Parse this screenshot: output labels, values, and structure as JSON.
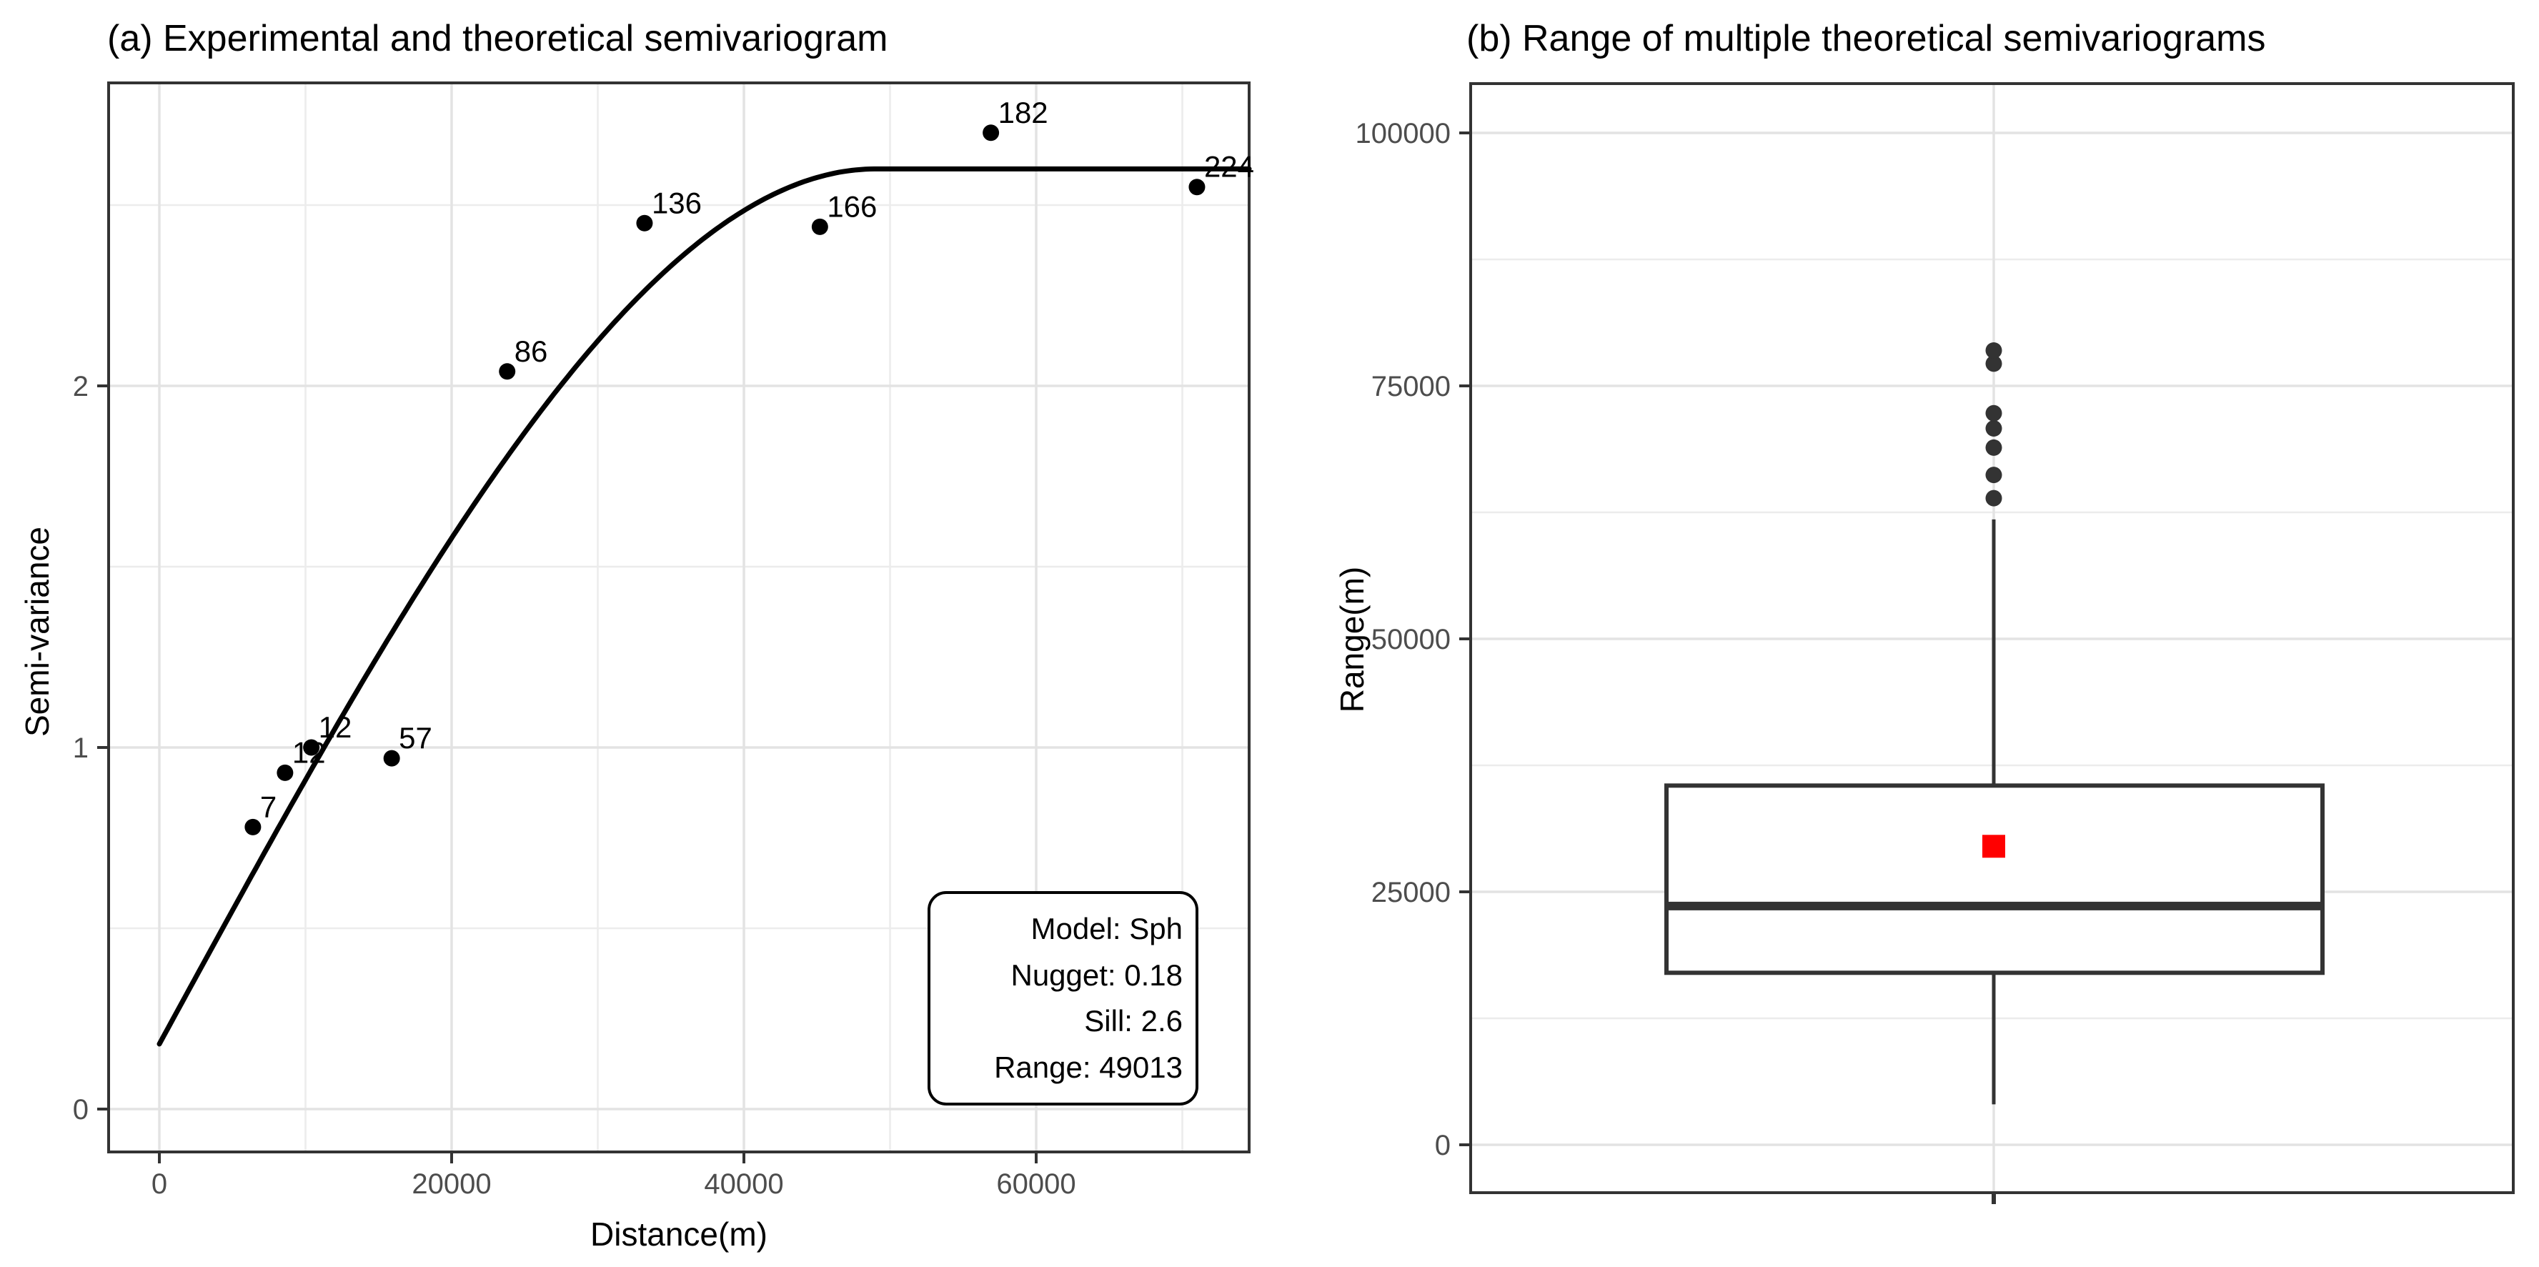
{
  "chart_data": [
    {
      "type": "scatter",
      "panel": "a",
      "title": "(a) Experimental and theoretical semivariogram",
      "xlabel": "Distance(m)",
      "ylabel": "Semi-variance",
      "x_ticks": [
        0,
        20000,
        40000,
        60000
      ],
      "x_minor_ticks": [
        10000,
        30000,
        50000,
        70000
      ],
      "y_ticks": [
        0,
        1,
        2
      ],
      "y_minor_ticks": [
        0.5,
        1.5,
        2.5
      ],
      "xlim": [
        -3470,
        74570
      ],
      "ylim": [
        -0.12,
        2.84
      ],
      "grid": true,
      "legend_position": "inside bottom-right",
      "points": [
        {
          "x": 6400,
          "y": 0.78,
          "label": "7"
        },
        {
          "x": 8600,
          "y": 0.93,
          "label": "12"
        },
        {
          "x": 10400,
          "y": 1.0,
          "label": "12"
        },
        {
          "x": 15900,
          "y": 0.97,
          "label": "57"
        },
        {
          "x": 23800,
          "y": 2.04,
          "label": "86"
        },
        {
          "x": 33200,
          "y": 2.45,
          "label": "136"
        },
        {
          "x": 45200,
          "y": 2.44,
          "label": "166"
        },
        {
          "x": 56900,
          "y": 2.7,
          "label": "182"
        },
        {
          "x": 71000,
          "y": 2.55,
          "label": "224"
        }
      ],
      "point_color": "#000000",
      "theoretical_curve": {
        "model": "Sph",
        "nugget": 0.18,
        "sill": 2.6,
        "range": 49013,
        "color": "#000000"
      },
      "annotation_box": {
        "lines": [
          "Model: Sph",
          "Nugget: 0.18",
          "Sill: 2.6",
          "Range: 49013"
        ]
      }
    },
    {
      "type": "boxplot",
      "panel": "b",
      "title": "(b) Range of multiple theoretical semivariograms",
      "xlabel": "",
      "ylabel": "Range(m)",
      "y_ticks": [
        0,
        25000,
        50000,
        75000,
        100000
      ],
      "y_minor_ticks": [
        12500,
        37500,
        62500,
        87500
      ],
      "ylim": [
        -4700,
        104900
      ],
      "grid": true,
      "box": {
        "whisker_low": 4000,
        "q1": 17000,
        "median": 23600,
        "q3": 35500,
        "whisker_high": 61800,
        "mean": 29500,
        "outliers": [
          63900,
          66200,
          68900,
          70800,
          72300,
          77200,
          78500
        ]
      },
      "mean_marker_color": "#ff0000",
      "box_color": "#333333"
    }
  ],
  "styles": {
    "background": "#ffffff",
    "tick_label_color": "#4d4d4d",
    "title_color": "#000000",
    "grid_major_color": "#e3e3e3",
    "grid_minor_color": "#ececec",
    "panel_border_color": "#333333",
    "tick_mark_color": "#333333"
  }
}
